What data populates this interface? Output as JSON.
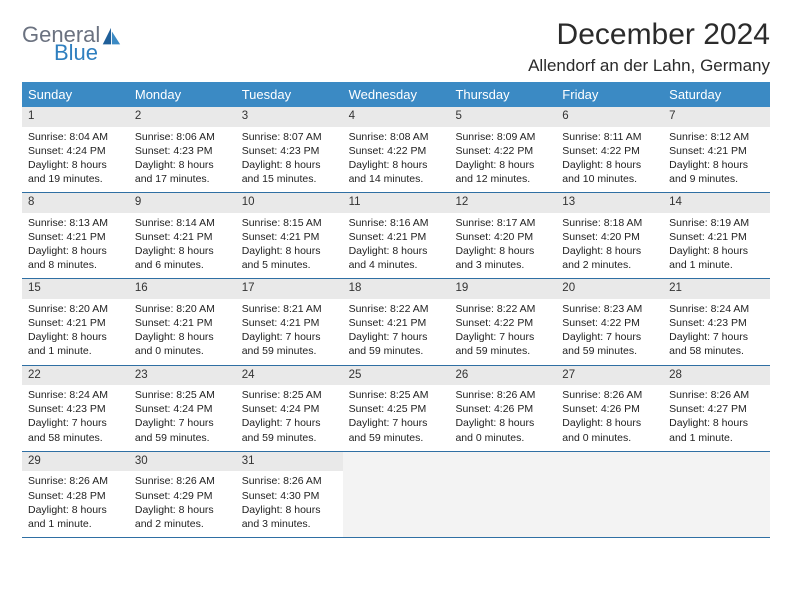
{
  "logo": {
    "general": "General",
    "blue": "Blue"
  },
  "title": "December 2024",
  "location": "Allendorf an der Lahn, Germany",
  "colors": {
    "header_bg": "#3b8ac4",
    "header_text": "#ffffff",
    "rule": "#2f6fa3",
    "daynum_bg": "#e9e9e9",
    "empty_bg": "#f3f3f3",
    "logo_gray": "#6b7280",
    "logo_blue": "#2f7fbf"
  },
  "day_headers": [
    "Sunday",
    "Monday",
    "Tuesday",
    "Wednesday",
    "Thursday",
    "Friday",
    "Saturday"
  ],
  "weeks": [
    [
      {
        "n": "1",
        "sunrise": "Sunrise: 8:04 AM",
        "sunset": "Sunset: 4:24 PM",
        "daylight": "Daylight: 8 hours and 19 minutes."
      },
      {
        "n": "2",
        "sunrise": "Sunrise: 8:06 AM",
        "sunset": "Sunset: 4:23 PM",
        "daylight": "Daylight: 8 hours and 17 minutes."
      },
      {
        "n": "3",
        "sunrise": "Sunrise: 8:07 AM",
        "sunset": "Sunset: 4:23 PM",
        "daylight": "Daylight: 8 hours and 15 minutes."
      },
      {
        "n": "4",
        "sunrise": "Sunrise: 8:08 AM",
        "sunset": "Sunset: 4:22 PM",
        "daylight": "Daylight: 8 hours and 14 minutes."
      },
      {
        "n": "5",
        "sunrise": "Sunrise: 8:09 AM",
        "sunset": "Sunset: 4:22 PM",
        "daylight": "Daylight: 8 hours and 12 minutes."
      },
      {
        "n": "6",
        "sunrise": "Sunrise: 8:11 AM",
        "sunset": "Sunset: 4:22 PM",
        "daylight": "Daylight: 8 hours and 10 minutes."
      },
      {
        "n": "7",
        "sunrise": "Sunrise: 8:12 AM",
        "sunset": "Sunset: 4:21 PM",
        "daylight": "Daylight: 8 hours and 9 minutes."
      }
    ],
    [
      {
        "n": "8",
        "sunrise": "Sunrise: 8:13 AM",
        "sunset": "Sunset: 4:21 PM",
        "daylight": "Daylight: 8 hours and 8 minutes."
      },
      {
        "n": "9",
        "sunrise": "Sunrise: 8:14 AM",
        "sunset": "Sunset: 4:21 PM",
        "daylight": "Daylight: 8 hours and 6 minutes."
      },
      {
        "n": "10",
        "sunrise": "Sunrise: 8:15 AM",
        "sunset": "Sunset: 4:21 PM",
        "daylight": "Daylight: 8 hours and 5 minutes."
      },
      {
        "n": "11",
        "sunrise": "Sunrise: 8:16 AM",
        "sunset": "Sunset: 4:21 PM",
        "daylight": "Daylight: 8 hours and 4 minutes."
      },
      {
        "n": "12",
        "sunrise": "Sunrise: 8:17 AM",
        "sunset": "Sunset: 4:20 PM",
        "daylight": "Daylight: 8 hours and 3 minutes."
      },
      {
        "n": "13",
        "sunrise": "Sunrise: 8:18 AM",
        "sunset": "Sunset: 4:20 PM",
        "daylight": "Daylight: 8 hours and 2 minutes."
      },
      {
        "n": "14",
        "sunrise": "Sunrise: 8:19 AM",
        "sunset": "Sunset: 4:21 PM",
        "daylight": "Daylight: 8 hours and 1 minute."
      }
    ],
    [
      {
        "n": "15",
        "sunrise": "Sunrise: 8:20 AM",
        "sunset": "Sunset: 4:21 PM",
        "daylight": "Daylight: 8 hours and 1 minute."
      },
      {
        "n": "16",
        "sunrise": "Sunrise: 8:20 AM",
        "sunset": "Sunset: 4:21 PM",
        "daylight": "Daylight: 8 hours and 0 minutes."
      },
      {
        "n": "17",
        "sunrise": "Sunrise: 8:21 AM",
        "sunset": "Sunset: 4:21 PM",
        "daylight": "Daylight: 7 hours and 59 minutes."
      },
      {
        "n": "18",
        "sunrise": "Sunrise: 8:22 AM",
        "sunset": "Sunset: 4:21 PM",
        "daylight": "Daylight: 7 hours and 59 minutes."
      },
      {
        "n": "19",
        "sunrise": "Sunrise: 8:22 AM",
        "sunset": "Sunset: 4:22 PM",
        "daylight": "Daylight: 7 hours and 59 minutes."
      },
      {
        "n": "20",
        "sunrise": "Sunrise: 8:23 AM",
        "sunset": "Sunset: 4:22 PM",
        "daylight": "Daylight: 7 hours and 59 minutes."
      },
      {
        "n": "21",
        "sunrise": "Sunrise: 8:24 AM",
        "sunset": "Sunset: 4:23 PM",
        "daylight": "Daylight: 7 hours and 58 minutes."
      }
    ],
    [
      {
        "n": "22",
        "sunrise": "Sunrise: 8:24 AM",
        "sunset": "Sunset: 4:23 PM",
        "daylight": "Daylight: 7 hours and 58 minutes."
      },
      {
        "n": "23",
        "sunrise": "Sunrise: 8:25 AM",
        "sunset": "Sunset: 4:24 PM",
        "daylight": "Daylight: 7 hours and 59 minutes."
      },
      {
        "n": "24",
        "sunrise": "Sunrise: 8:25 AM",
        "sunset": "Sunset: 4:24 PM",
        "daylight": "Daylight: 7 hours and 59 minutes."
      },
      {
        "n": "25",
        "sunrise": "Sunrise: 8:25 AM",
        "sunset": "Sunset: 4:25 PM",
        "daylight": "Daylight: 7 hours and 59 minutes."
      },
      {
        "n": "26",
        "sunrise": "Sunrise: 8:26 AM",
        "sunset": "Sunset: 4:26 PM",
        "daylight": "Daylight: 8 hours and 0 minutes."
      },
      {
        "n": "27",
        "sunrise": "Sunrise: 8:26 AM",
        "sunset": "Sunset: 4:26 PM",
        "daylight": "Daylight: 8 hours and 0 minutes."
      },
      {
        "n": "28",
        "sunrise": "Sunrise: 8:26 AM",
        "sunset": "Sunset: 4:27 PM",
        "daylight": "Daylight: 8 hours and 1 minute."
      }
    ],
    [
      {
        "n": "29",
        "sunrise": "Sunrise: 8:26 AM",
        "sunset": "Sunset: 4:28 PM",
        "daylight": "Daylight: 8 hours and 1 minute."
      },
      {
        "n": "30",
        "sunrise": "Sunrise: 8:26 AM",
        "sunset": "Sunset: 4:29 PM",
        "daylight": "Daylight: 8 hours and 2 minutes."
      },
      {
        "n": "31",
        "sunrise": "Sunrise: 8:26 AM",
        "sunset": "Sunset: 4:30 PM",
        "daylight": "Daylight: 8 hours and 3 minutes."
      },
      {
        "empty": true
      },
      {
        "empty": true
      },
      {
        "empty": true
      },
      {
        "empty": true
      }
    ]
  ]
}
